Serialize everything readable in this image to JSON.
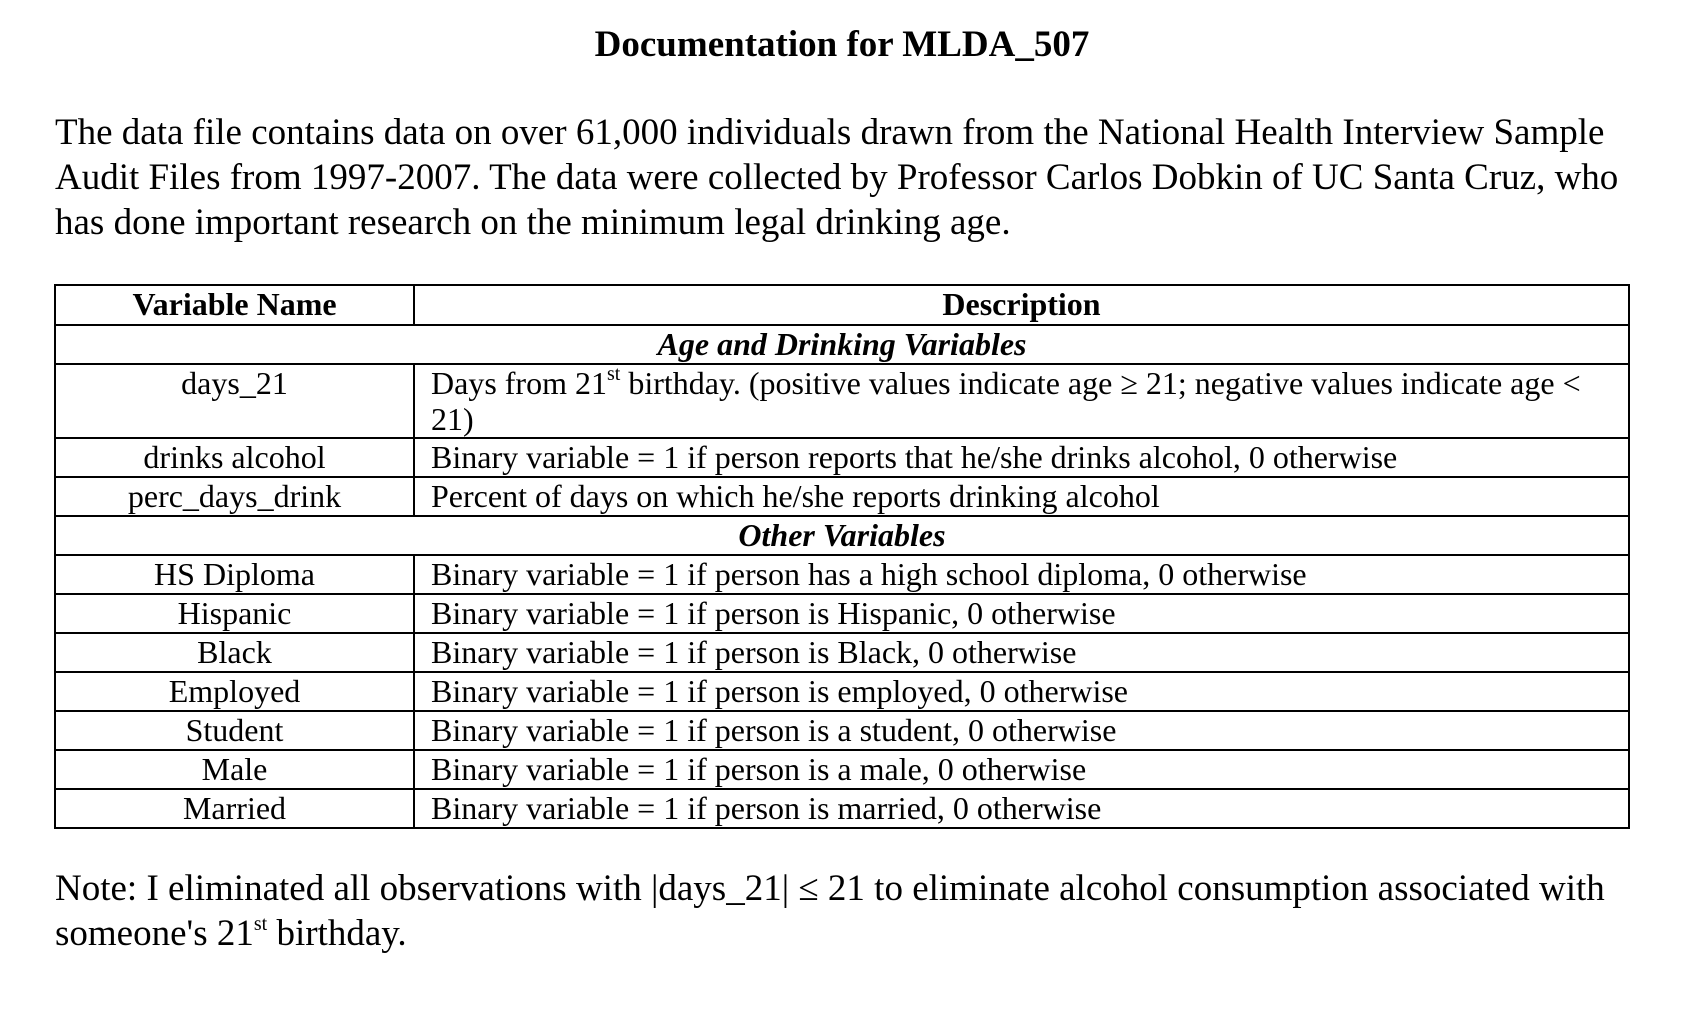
{
  "document": {
    "title": "Documentation for MLDA_507",
    "intro": "The data file contains data on over 61,000 individuals drawn from the National Health Interview Sample Audit Files from 1997-2007.  The data were collected by Professor Carlos Dobkin of UC Santa Cruz, who has done important research on the minimum legal drinking age."
  },
  "table": {
    "headers": {
      "name": "Variable Name",
      "description": "Description"
    },
    "sections": [
      {
        "title": "Age and Drinking Variables",
        "rows": [
          {
            "name": "days_21",
            "desc_pre": "Days from 21",
            "desc_sup": "st",
            "desc_post": " birthday.  (positive values indicate age ≥ 21; negative values indicate age < 21)"
          },
          {
            "name": "drinks alcohol",
            "desc_pre": "Binary variable = 1 if person reports that he/she drinks alcohol, 0 otherwise",
            "desc_sup": "",
            "desc_post": ""
          },
          {
            "name": "perc_days_drink",
            "desc_pre": "Percent of days on which he/she reports drinking alcohol",
            "desc_sup": "",
            "desc_post": ""
          }
        ]
      },
      {
        "title": "Other Variables",
        "rows": [
          {
            "name": "HS Diploma",
            "desc_pre": "Binary variable = 1 if person has a high school diploma, 0 otherwise",
            "desc_sup": "",
            "desc_post": ""
          },
          {
            "name": "Hispanic",
            "desc_pre": "Binary variable = 1 if person is Hispanic, 0 otherwise",
            "desc_sup": "",
            "desc_post": ""
          },
          {
            "name": "Black",
            "desc_pre": "Binary variable = 1 if person is Black, 0 otherwise",
            "desc_sup": "",
            "desc_post": ""
          },
          {
            "name": "Employed",
            "desc_pre": "Binary variable = 1 if person is employed, 0 otherwise",
            "desc_sup": "",
            "desc_post": ""
          },
          {
            "name": "Student",
            "desc_pre": "Binary variable = 1 if person is a student, 0 otherwise",
            "desc_sup": "",
            "desc_post": ""
          },
          {
            "name": "Male",
            "desc_pre": "Binary variable = 1 if person is a male, 0 otherwise",
            "desc_sup": "",
            "desc_post": ""
          },
          {
            "name": "Married",
            "desc_pre": "Binary variable = 1 if person is married, 0 otherwise",
            "desc_sup": "",
            "desc_post": ""
          }
        ]
      }
    ]
  },
  "note": {
    "pre": "Note: I eliminated all observations with |days_21| ≤ 21 to eliminate alcohol consumption associated with someone's 21",
    "sup": "st",
    "post": " birthday."
  }
}
